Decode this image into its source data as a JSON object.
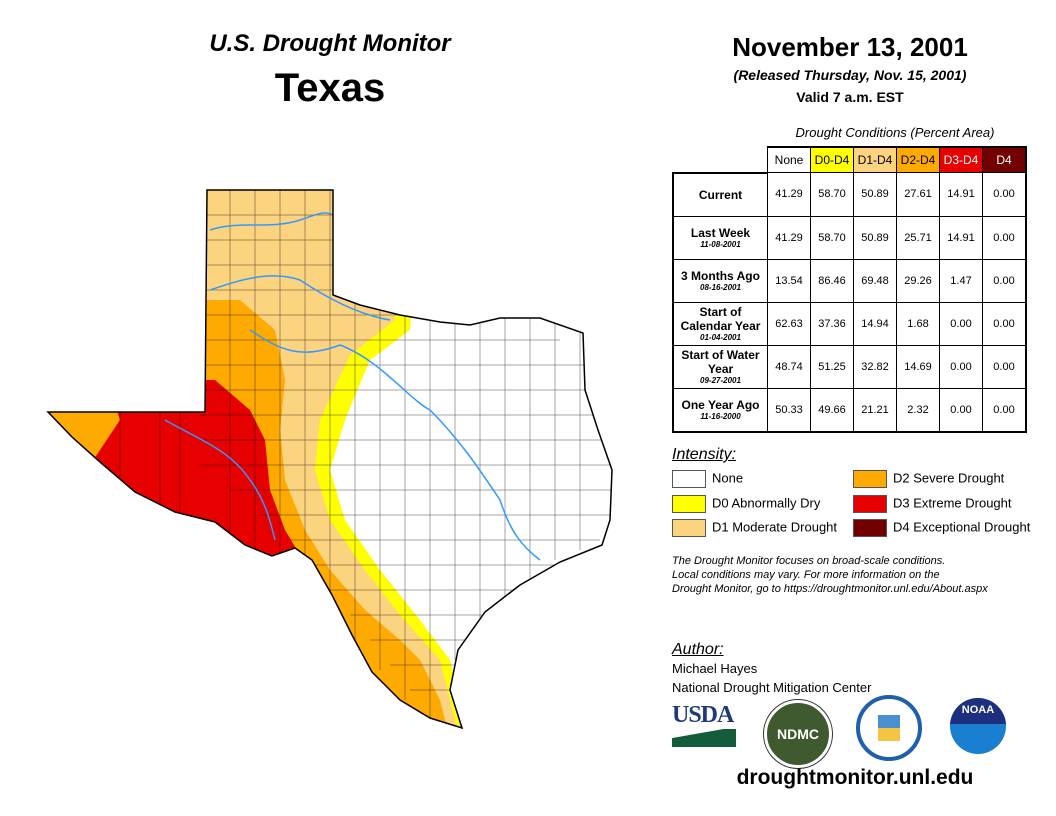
{
  "header": {
    "title": "U.S. Drought Monitor",
    "region": "Texas",
    "date": "November 13, 2001",
    "released": "(Released Thursday, Nov. 15, 2001)",
    "valid": "Valid 7 a.m. EST"
  },
  "table": {
    "caption": "Drought Conditions (Percent Area)",
    "columns": [
      "None",
      "D0-D4",
      "D1-D4",
      "D2-D4",
      "D3-D4",
      "D4"
    ],
    "rows": [
      {
        "label": "Current",
        "date": "",
        "values": [
          "41.29",
          "58.70",
          "50.89",
          "27.61",
          "14.91",
          "0.00"
        ]
      },
      {
        "label": "Last Week",
        "date": "11-08-2001",
        "values": [
          "41.29",
          "58.70",
          "50.89",
          "25.71",
          "14.91",
          "0.00"
        ]
      },
      {
        "label": "3 Months Ago",
        "date": "08-16-2001",
        "values": [
          "13.54",
          "86.46",
          "69.48",
          "29.26",
          "1.47",
          "0.00"
        ]
      },
      {
        "label": "Start of Calendar Year",
        "date": "01-04-2001",
        "values": [
          "62.63",
          "37.36",
          "14.94",
          "1.68",
          "0.00",
          "0.00"
        ]
      },
      {
        "label": "Start of Water Year",
        "date": "09-27-2001",
        "values": [
          "48.74",
          "51.25",
          "32.82",
          "14.69",
          "0.00",
          "0.00"
        ]
      },
      {
        "label": "One Year Ago",
        "date": "11-16-2000",
        "values": [
          "50.33",
          "49.66",
          "21.21",
          "2.32",
          "0.00",
          "0.00"
        ]
      }
    ]
  },
  "legend": {
    "title": "Intensity:",
    "items": [
      {
        "label": "None",
        "color": "#ffffff"
      },
      {
        "label": "D0 Abnormally Dry",
        "color": "#ffff00"
      },
      {
        "label": "D1 Moderate Drought",
        "color": "#fcd37f"
      },
      {
        "label": "D2 Severe Drought",
        "color": "#ffaa00"
      },
      {
        "label": "D3 Extreme Drought",
        "color": "#e60000"
      },
      {
        "label": "D4 Exceptional Drought",
        "color": "#730000"
      }
    ]
  },
  "note": [
    "The Drought Monitor focuses on broad-scale conditions.",
    "Local conditions may vary. For more information on the",
    "Drought Monitor, go to https://droughtmonitor.unl.edu/About.aspx"
  ],
  "author": {
    "title": "Author:",
    "name": "Michael Hayes",
    "org": "National Drought Mitigation Center"
  },
  "logos": {
    "usda": "USDA",
    "ndmc": "NDMC",
    "noaa": "NOAA"
  },
  "url": "droughtmonitor.unl.edu"
}
